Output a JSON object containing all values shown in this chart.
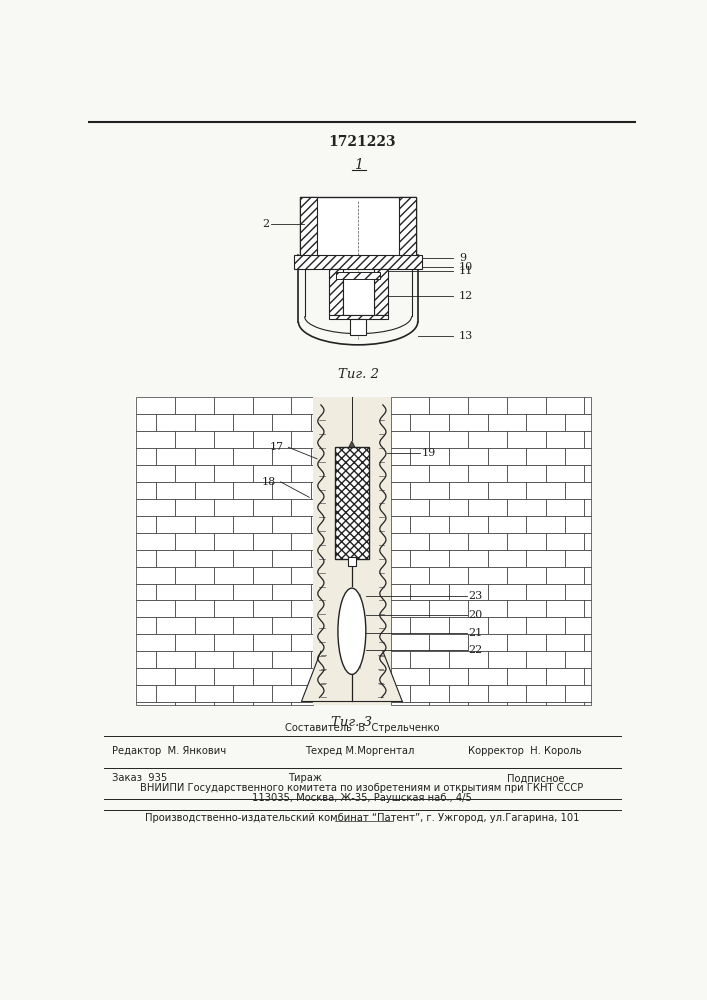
{
  "title_number": "1721223",
  "fig1_label": "1",
  "fig2_caption": "Τиг. 2",
  "fig3_caption": "Τиг. 3",
  "footer_line0_center": "Составитель  В. Стрельченко",
  "footer_line1_left": "Редактор  М. Янкович",
  "footer_line1_center": "Техред М.Моргентал",
  "footer_line1_right": "Корректор  Н. Король",
  "footer_line2_left": "Заказ  935",
  "footer_line2_center": "Тираж",
  "footer_line2_right": "Подписное",
  "footer_line3": "ВНИИПИ Государственного комитета по изобретениям и открытиям при ГКНТ СССР",
  "footer_line4": "113035, Москва, Ж-35, Раушская наб., 4/5",
  "footer_line5": "Производственно-издательский комбинат “Патент”, г. Ужгород, ул.Гагарина, 101",
  "bg_color": "#f8f8f4",
  "line_color": "#222222",
  "hatch_color": "#333333"
}
